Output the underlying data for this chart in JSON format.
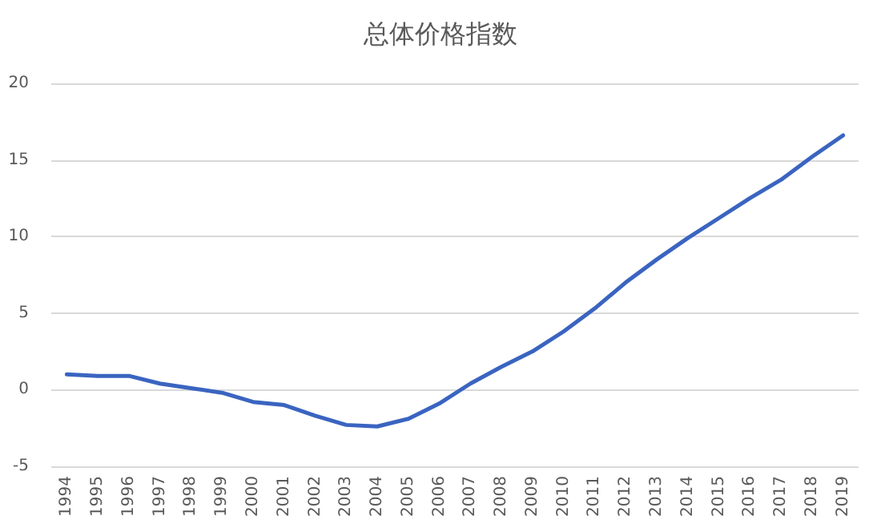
{
  "chart_data": {
    "type": "line",
    "title": "总体价格指数",
    "categories": [
      "1994",
      "1995",
      "1996",
      "1997",
      "1998",
      "1999",
      "2000",
      "2001",
      "2002",
      "2003",
      "2004",
      "2005",
      "2006",
      "2007",
      "2008",
      "2009",
      "2010",
      "2011",
      "2012",
      "2013",
      "2014",
      "2015",
      "2016",
      "2017",
      "2018",
      "2019"
    ],
    "series": [
      {
        "color": "#3a64c0",
        "values": [
          1.0,
          0.9,
          0.9,
          0.4,
          0.1,
          -0.2,
          -0.8,
          -1.0,
          -1.7,
          -2.3,
          -2.4,
          -1.9,
          -0.9,
          0.4,
          1.5,
          2.5,
          3.8,
          5.3,
          7.0,
          8.5,
          9.9,
          11.2,
          12.5,
          13.7,
          15.2,
          16.6
        ]
      }
    ],
    "ylim": [
      -5,
      20
    ],
    "yticks": [
      -5,
      0,
      5,
      10,
      15,
      20
    ],
    "grid": "y",
    "marker": "none",
    "line_style": "solid"
  }
}
